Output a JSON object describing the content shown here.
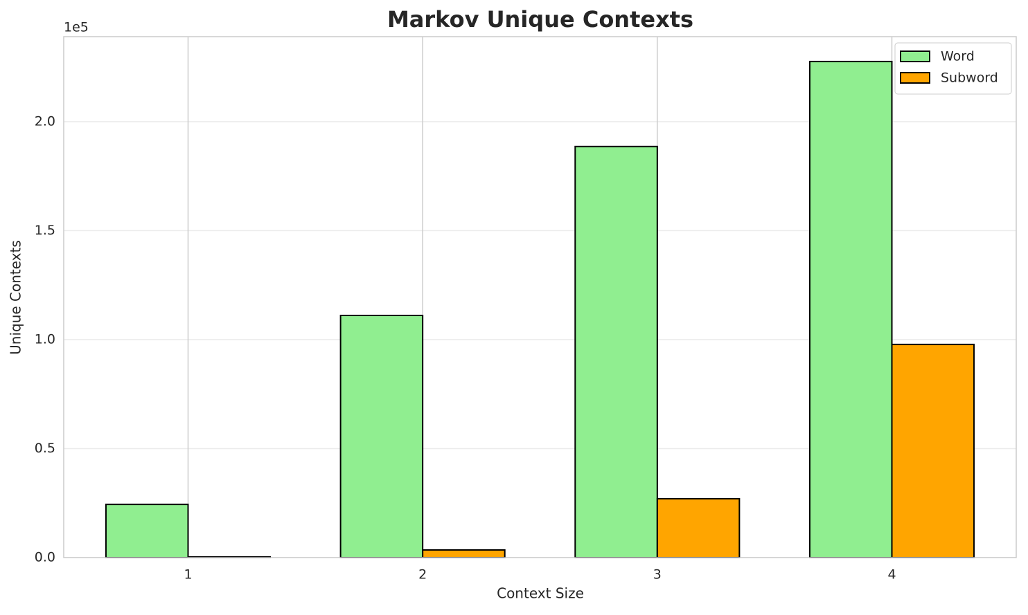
{
  "chart_data": {
    "type": "grouped_bar",
    "title": "Markov Unique Contexts",
    "x_label": "Context Size",
    "y_label": "Unique Contexts",
    "y_offset_label": "1e5",
    "categories": [
      "1",
      "2",
      "3",
      "4"
    ],
    "series": [
      {
        "name": "Word",
        "color": "#90ee90",
        "values": [
          24400,
          111100,
          188600,
          227600
        ]
      },
      {
        "name": "Subword",
        "color": "#ffa500",
        "values": [
          300,
          3500,
          27000,
          97800
        ]
      }
    ],
    "ylim": [
      0,
      239000
    ],
    "yticks": [
      {
        "value": 0,
        "label": "0.0"
      },
      {
        "value": 50000,
        "label": "0.5"
      },
      {
        "value": 100000,
        "label": "1.0"
      },
      {
        "value": 150000,
        "label": "1.5"
      },
      {
        "value": 200000,
        "label": "2.0"
      }
    ],
    "grid": true,
    "legend": "upper right"
  }
}
